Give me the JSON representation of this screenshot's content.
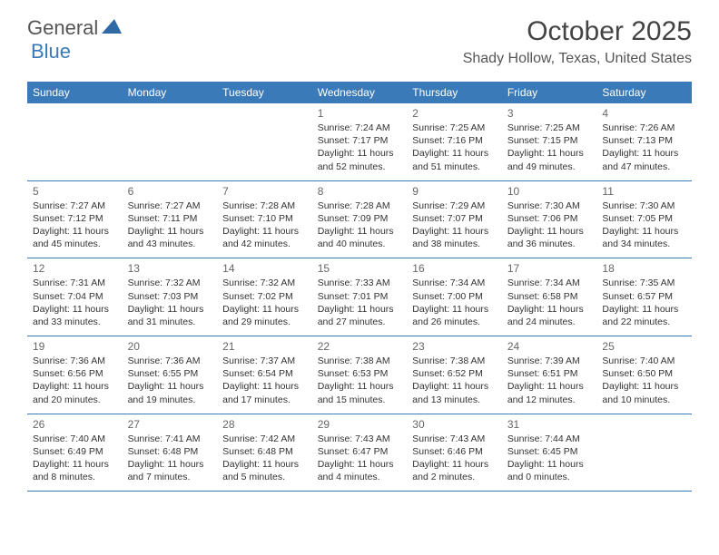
{
  "logo": {
    "general": "General",
    "blue": "Blue"
  },
  "title": "October 2025",
  "location": "Shady Hollow, Texas, United States",
  "colors": {
    "accent": "#3a7ab8",
    "text": "#333333",
    "header_text": "#ffffff",
    "bg": "#ffffff"
  },
  "day_names": [
    "Sunday",
    "Monday",
    "Tuesday",
    "Wednesday",
    "Thursday",
    "Friday",
    "Saturday"
  ],
  "weeks": [
    [
      null,
      null,
      null,
      {
        "n": "1",
        "sr": "Sunrise: 7:24 AM",
        "ss": "Sunset: 7:17 PM",
        "d1": "Daylight: 11 hours",
        "d2": "and 52 minutes."
      },
      {
        "n": "2",
        "sr": "Sunrise: 7:25 AM",
        "ss": "Sunset: 7:16 PM",
        "d1": "Daylight: 11 hours",
        "d2": "and 51 minutes."
      },
      {
        "n": "3",
        "sr": "Sunrise: 7:25 AM",
        "ss": "Sunset: 7:15 PM",
        "d1": "Daylight: 11 hours",
        "d2": "and 49 minutes."
      },
      {
        "n": "4",
        "sr": "Sunrise: 7:26 AM",
        "ss": "Sunset: 7:13 PM",
        "d1": "Daylight: 11 hours",
        "d2": "and 47 minutes."
      }
    ],
    [
      {
        "n": "5",
        "sr": "Sunrise: 7:27 AM",
        "ss": "Sunset: 7:12 PM",
        "d1": "Daylight: 11 hours",
        "d2": "and 45 minutes."
      },
      {
        "n": "6",
        "sr": "Sunrise: 7:27 AM",
        "ss": "Sunset: 7:11 PM",
        "d1": "Daylight: 11 hours",
        "d2": "and 43 minutes."
      },
      {
        "n": "7",
        "sr": "Sunrise: 7:28 AM",
        "ss": "Sunset: 7:10 PM",
        "d1": "Daylight: 11 hours",
        "d2": "and 42 minutes."
      },
      {
        "n": "8",
        "sr": "Sunrise: 7:28 AM",
        "ss": "Sunset: 7:09 PM",
        "d1": "Daylight: 11 hours",
        "d2": "and 40 minutes."
      },
      {
        "n": "9",
        "sr": "Sunrise: 7:29 AM",
        "ss": "Sunset: 7:07 PM",
        "d1": "Daylight: 11 hours",
        "d2": "and 38 minutes."
      },
      {
        "n": "10",
        "sr": "Sunrise: 7:30 AM",
        "ss": "Sunset: 7:06 PM",
        "d1": "Daylight: 11 hours",
        "d2": "and 36 minutes."
      },
      {
        "n": "11",
        "sr": "Sunrise: 7:30 AM",
        "ss": "Sunset: 7:05 PM",
        "d1": "Daylight: 11 hours",
        "d2": "and 34 minutes."
      }
    ],
    [
      {
        "n": "12",
        "sr": "Sunrise: 7:31 AM",
        "ss": "Sunset: 7:04 PM",
        "d1": "Daylight: 11 hours",
        "d2": "and 33 minutes."
      },
      {
        "n": "13",
        "sr": "Sunrise: 7:32 AM",
        "ss": "Sunset: 7:03 PM",
        "d1": "Daylight: 11 hours",
        "d2": "and 31 minutes."
      },
      {
        "n": "14",
        "sr": "Sunrise: 7:32 AM",
        "ss": "Sunset: 7:02 PM",
        "d1": "Daylight: 11 hours",
        "d2": "and 29 minutes."
      },
      {
        "n": "15",
        "sr": "Sunrise: 7:33 AM",
        "ss": "Sunset: 7:01 PM",
        "d1": "Daylight: 11 hours",
        "d2": "and 27 minutes."
      },
      {
        "n": "16",
        "sr": "Sunrise: 7:34 AM",
        "ss": "Sunset: 7:00 PM",
        "d1": "Daylight: 11 hours",
        "d2": "and 26 minutes."
      },
      {
        "n": "17",
        "sr": "Sunrise: 7:34 AM",
        "ss": "Sunset: 6:58 PM",
        "d1": "Daylight: 11 hours",
        "d2": "and 24 minutes."
      },
      {
        "n": "18",
        "sr": "Sunrise: 7:35 AM",
        "ss": "Sunset: 6:57 PM",
        "d1": "Daylight: 11 hours",
        "d2": "and 22 minutes."
      }
    ],
    [
      {
        "n": "19",
        "sr": "Sunrise: 7:36 AM",
        "ss": "Sunset: 6:56 PM",
        "d1": "Daylight: 11 hours",
        "d2": "and 20 minutes."
      },
      {
        "n": "20",
        "sr": "Sunrise: 7:36 AM",
        "ss": "Sunset: 6:55 PM",
        "d1": "Daylight: 11 hours",
        "d2": "and 19 minutes."
      },
      {
        "n": "21",
        "sr": "Sunrise: 7:37 AM",
        "ss": "Sunset: 6:54 PM",
        "d1": "Daylight: 11 hours",
        "d2": "and 17 minutes."
      },
      {
        "n": "22",
        "sr": "Sunrise: 7:38 AM",
        "ss": "Sunset: 6:53 PM",
        "d1": "Daylight: 11 hours",
        "d2": "and 15 minutes."
      },
      {
        "n": "23",
        "sr": "Sunrise: 7:38 AM",
        "ss": "Sunset: 6:52 PM",
        "d1": "Daylight: 11 hours",
        "d2": "and 13 minutes."
      },
      {
        "n": "24",
        "sr": "Sunrise: 7:39 AM",
        "ss": "Sunset: 6:51 PM",
        "d1": "Daylight: 11 hours",
        "d2": "and 12 minutes."
      },
      {
        "n": "25",
        "sr": "Sunrise: 7:40 AM",
        "ss": "Sunset: 6:50 PM",
        "d1": "Daylight: 11 hours",
        "d2": "and 10 minutes."
      }
    ],
    [
      {
        "n": "26",
        "sr": "Sunrise: 7:40 AM",
        "ss": "Sunset: 6:49 PM",
        "d1": "Daylight: 11 hours",
        "d2": "and 8 minutes."
      },
      {
        "n": "27",
        "sr": "Sunrise: 7:41 AM",
        "ss": "Sunset: 6:48 PM",
        "d1": "Daylight: 11 hours",
        "d2": "and 7 minutes."
      },
      {
        "n": "28",
        "sr": "Sunrise: 7:42 AM",
        "ss": "Sunset: 6:48 PM",
        "d1": "Daylight: 11 hours",
        "d2": "and 5 minutes."
      },
      {
        "n": "29",
        "sr": "Sunrise: 7:43 AM",
        "ss": "Sunset: 6:47 PM",
        "d1": "Daylight: 11 hours",
        "d2": "and 4 minutes."
      },
      {
        "n": "30",
        "sr": "Sunrise: 7:43 AM",
        "ss": "Sunset: 6:46 PM",
        "d1": "Daylight: 11 hours",
        "d2": "and 2 minutes."
      },
      {
        "n": "31",
        "sr": "Sunrise: 7:44 AM",
        "ss": "Sunset: 6:45 PM",
        "d1": "Daylight: 11 hours",
        "d2": "and 0 minutes."
      },
      null
    ]
  ]
}
